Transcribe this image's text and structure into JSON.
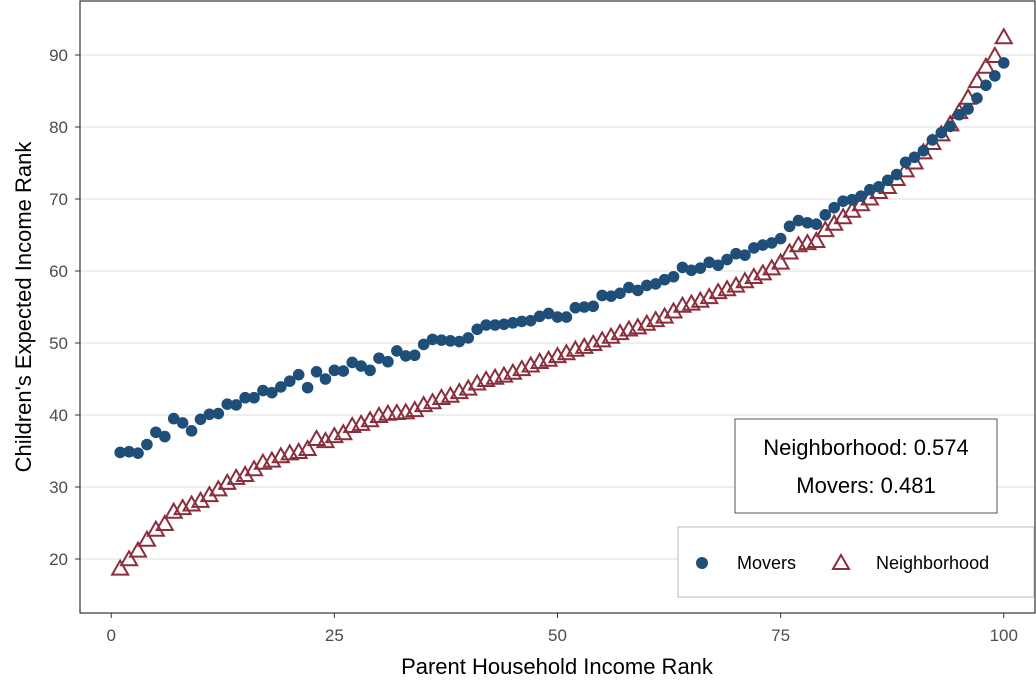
{
  "chart_data": {
    "type": "scatter",
    "title": "",
    "xlabel": "Parent Household Income Rank",
    "ylabel": "Children's Expected Income Rank",
    "xlim": [
      -3.5,
      103.5
    ],
    "ylim": [
      12.5,
      97.5
    ],
    "x_ticks": [
      0,
      25,
      50,
      75,
      100
    ],
    "y_ticks": [
      20,
      30,
      40,
      50,
      60,
      70,
      80,
      90
    ],
    "grid": "horizontal",
    "legend_position": "bottom-right",
    "annotation": {
      "line1": "Neighborhood: 0.574",
      "line2": "Movers: 0.481"
    },
    "series": [
      {
        "name": "Movers",
        "marker": "filled-circle",
        "color": "#1f4e79",
        "x": [
          1,
          2,
          3,
          4,
          5,
          6,
          7,
          8,
          9,
          10,
          11,
          12,
          13,
          14,
          15,
          16,
          17,
          18,
          19,
          20,
          21,
          22,
          23,
          24,
          25,
          26,
          27,
          28,
          29,
          30,
          31,
          32,
          33,
          34,
          35,
          36,
          37,
          38,
          39,
          40,
          41,
          42,
          43,
          44,
          45,
          46,
          47,
          48,
          49,
          50,
          51,
          52,
          53,
          54,
          55,
          56,
          57,
          58,
          59,
          60,
          61,
          62,
          63,
          64,
          65,
          66,
          67,
          68,
          69,
          70,
          71,
          72,
          73,
          74,
          75,
          76,
          77,
          78,
          79,
          80,
          81,
          82,
          83,
          84,
          85,
          86,
          87,
          88,
          89,
          90,
          91,
          92,
          93,
          94,
          95,
          96,
          97,
          98,
          99,
          100
        ],
        "y": [
          34.8,
          34.9,
          34.7,
          35.9,
          37.6,
          37.0,
          39.5,
          38.9,
          37.8,
          39.4,
          40.1,
          40.2,
          41.5,
          41.4,
          42.4,
          42.4,
          43.4,
          43.1,
          43.9,
          44.7,
          45.6,
          43.8,
          46.0,
          45.0,
          46.2,
          46.1,
          47.3,
          46.8,
          46.2,
          47.9,
          47.4,
          48.9,
          48.2,
          48.3,
          49.8,
          50.5,
          50.4,
          50.3,
          50.2,
          50.7,
          51.9,
          52.5,
          52.5,
          52.6,
          52.8,
          53.0,
          53.1,
          53.7,
          54.1,
          53.6,
          53.6,
          54.9,
          55.0,
          55.1,
          56.6,
          56.5,
          56.9,
          57.7,
          57.3,
          58.0,
          58.2,
          58.8,
          59.2,
          60.5,
          60.1,
          60.4,
          61.2,
          60.8,
          61.6,
          62.4,
          62.2,
          63.2,
          63.6,
          63.9,
          64.5,
          66.2,
          67.0,
          66.7,
          66.5,
          67.8,
          68.8,
          69.7,
          69.9,
          70.4,
          71.3,
          71.7,
          72.6,
          73.4,
          75.1,
          75.8,
          76.7,
          78.2,
          79.2,
          80.1,
          81.7,
          82.5,
          84.0,
          85.8,
          87.1,
          88.9
        ]
      },
      {
        "name": "Neighborhood",
        "marker": "open-triangle",
        "color": "#8b2e3c",
        "x": [
          1,
          2,
          3,
          4,
          5,
          6,
          7,
          8,
          9,
          10,
          11,
          12,
          13,
          14,
          15,
          16,
          17,
          18,
          19,
          20,
          21,
          22,
          23,
          24,
          25,
          26,
          27,
          28,
          29,
          30,
          31,
          32,
          33,
          34,
          35,
          36,
          37,
          38,
          39,
          40,
          41,
          42,
          43,
          44,
          45,
          46,
          47,
          48,
          49,
          50,
          51,
          52,
          53,
          54,
          55,
          56,
          57,
          58,
          59,
          60,
          61,
          62,
          63,
          64,
          65,
          66,
          67,
          68,
          69,
          70,
          71,
          72,
          73,
          74,
          75,
          76,
          77,
          78,
          79,
          80,
          81,
          82,
          83,
          84,
          85,
          86,
          87,
          88,
          89,
          90,
          91,
          92,
          93,
          94,
          95,
          96,
          97,
          98,
          99,
          100
        ],
        "y": [
          18.6,
          19.9,
          21.1,
          22.6,
          24.0,
          24.8,
          26.5,
          27.0,
          27.5,
          28.0,
          28.8,
          29.6,
          30.5,
          31.2,
          31.6,
          32.4,
          33.3,
          33.6,
          34.2,
          34.6,
          34.8,
          35.2,
          36.6,
          36.3,
          37.0,
          37.4,
          38.4,
          38.7,
          39.2,
          39.8,
          40.1,
          40.2,
          40.3,
          40.6,
          41.3,
          41.7,
          42.3,
          42.6,
          43.1,
          43.6,
          44.3,
          44.8,
          45.1,
          45.4,
          45.8,
          46.3,
          46.8,
          47.3,
          47.6,
          48.1,
          48.5,
          49.0,
          49.4,
          49.8,
          50.3,
          50.8,
          51.3,
          51.8,
          52.1,
          52.6,
          53.1,
          53.6,
          54.3,
          55.1,
          55.4,
          55.8,
          56.3,
          57.0,
          57.4,
          57.9,
          58.5,
          59.1,
          59.6,
          60.3,
          61.1,
          62.5,
          63.5,
          63.8,
          64.1,
          65.6,
          66.5,
          67.4,
          68.3,
          69.2,
          70.0,
          70.9,
          71.6,
          72.7,
          73.9,
          75.0,
          76.4,
          77.7,
          78.9,
          80.3,
          82.0,
          84.0,
          86.3,
          88.3,
          89.8,
          92.4
        ]
      }
    ]
  },
  "legend": {
    "items": [
      {
        "label": "Movers"
      },
      {
        "label": "Neighborhood"
      }
    ]
  }
}
